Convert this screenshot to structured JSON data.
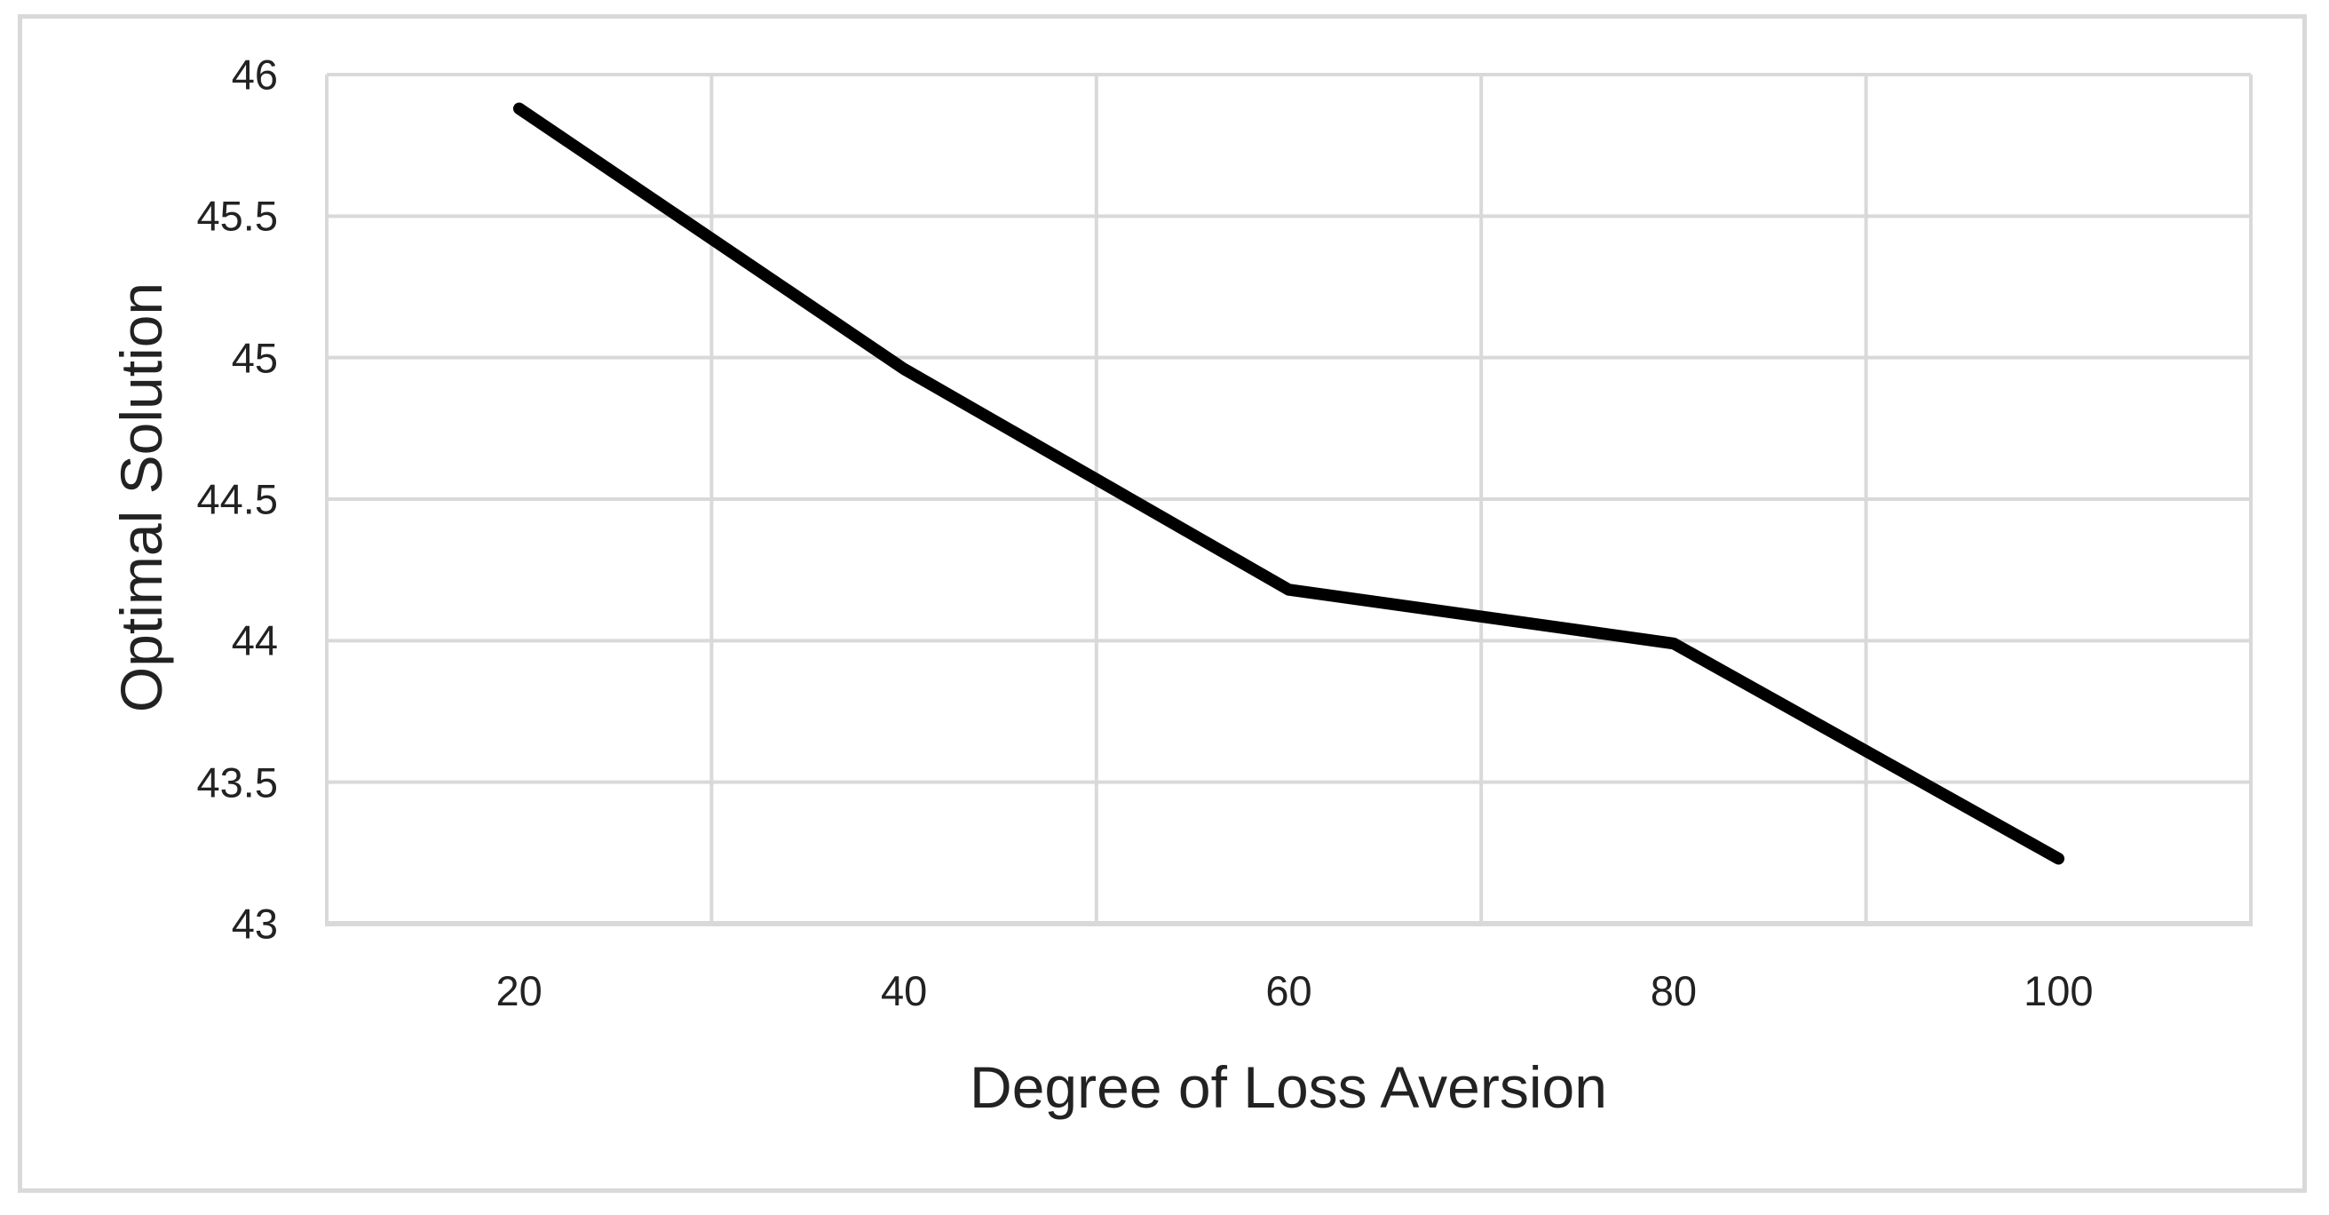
{
  "chart_data": {
    "type": "line",
    "title": "",
    "xlabel": "Degree of Loss Aversion",
    "ylabel": "Optimal Solution",
    "categories": [
      "20",
      "40",
      "60",
      "80",
      "100"
    ],
    "series": [
      {
        "name": "Optimal Solution",
        "values": [
          45.88,
          44.96,
          44.18,
          43.99,
          43.23
        ]
      }
    ],
    "ylim": [
      43,
      46
    ],
    "ytick_step": 0.5,
    "yticks": [
      46,
      45.5,
      45,
      44.5,
      44,
      43.5,
      43
    ],
    "grid": true,
    "legend_position": "none",
    "line_color": "#000000",
    "gridline_color": "#d9d9d9",
    "axis_line_color": "#d9d9d9",
    "frame_border_color": "#d9d9d9",
    "text_color": "#222222",
    "background_color": "#ffffff"
  }
}
